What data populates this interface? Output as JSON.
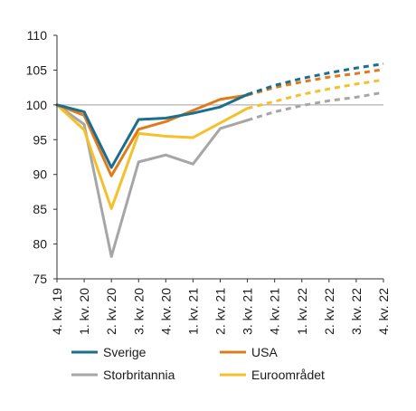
{
  "chart_data": {
    "type": "line",
    "x": [
      "4. kv. 19",
      "1. kv. 20",
      "2. kv. 20",
      "3. kv. 20",
      "4. kv. 20",
      "1. kv. 21",
      "2. kv. 21",
      "3. kv. 21",
      "4. kv. 21",
      "1. kv. 22",
      "2. kv. 22",
      "3. kv. 22",
      "4. kv. 22"
    ],
    "ylim": [
      75,
      110
    ],
    "yticks": [
      75,
      80,
      85,
      90,
      95,
      100,
      105,
      110
    ],
    "reference_line": 100,
    "grid": false,
    "legend_placement": "bottom",
    "projection_start_index": 7,
    "series": [
      {
        "name": "Sverige",
        "color": "#1a6e8e",
        "values": [
          100,
          99.0,
          91.0,
          97.9,
          98.1,
          98.8,
          99.7,
          101.5,
          102.8,
          103.8,
          104.6,
          105.3,
          105.9
        ]
      },
      {
        "name": "USA",
        "color": "#e07b1c",
        "values": [
          100,
          98.5,
          89.8,
          96.5,
          97.6,
          99.2,
          100.8,
          101.4,
          102.5,
          103.3,
          104.0,
          104.5,
          105.1
        ]
      },
      {
        "name": "Storbritannia",
        "color": "#a6a6a6",
        "values": [
          100,
          97.2,
          78.2,
          91.8,
          92.8,
          91.5,
          96.6,
          97.8,
          99.0,
          99.9,
          100.6,
          101.1,
          101.8
        ]
      },
      {
        "name": "Euroområdet",
        "color": "#f5c02a",
        "values": [
          100,
          96.4,
          85.1,
          95.9,
          95.5,
          95.3,
          97.4,
          99.5,
          100.5,
          101.5,
          102.3,
          103.0,
          103.6
        ]
      }
    ]
  }
}
